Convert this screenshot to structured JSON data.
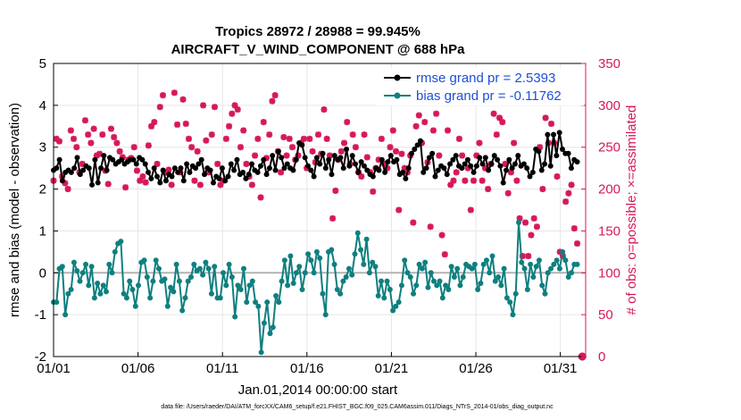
{
  "chart_data": {
    "type": "line",
    "title_line1": "Tropics 28972 / 28988 = 99.945%",
    "title_line2": "AIRCRAFT_V_WIND_COMPONENT @ 688 hPa",
    "xlabel": "Jan.01,2014 00:00:00 start",
    "ylabel_left": "rmse and bias (model - observation)",
    "ylabel_right": "# of obs: o=possible; ×=assimilated",
    "footnote": "data file: /Users/raeder/DAI/ATM_forcXX/CAM6_setup/f.e21.FHIST_BGC.f09_025.CAM6assim.011/Diags_NTrS_2014-01/obs_diag_output.nc",
    "xlim": [
      0,
      31.5
    ],
    "ylim_left": [
      -2,
      5
    ],
    "ylim_right": [
      0,
      350
    ],
    "x_ticks": [
      {
        "value": 0,
        "label": "01/01"
      },
      {
        "value": 5,
        "label": "01/06"
      },
      {
        "value": 10,
        "label": "01/11"
      },
      {
        "value": 15,
        "label": "01/16"
      },
      {
        "value": 20,
        "label": "01/21"
      },
      {
        "value": 25,
        "label": "01/26"
      },
      {
        "value": 30,
        "label": "01/31"
      }
    ],
    "y_ticks_left": [
      -2,
      -1,
      0,
      1,
      2,
      3,
      4,
      5
    ],
    "y_ticks_right": [
      0,
      50,
      100,
      150,
      200,
      250,
      300,
      350
    ],
    "grid": true,
    "legend_position": "top-right",
    "colors": {
      "rmse": "#000000",
      "bias": "#0f7f7f",
      "obs": "#d6195a",
      "zero_line": "#b3b3b3",
      "legend_text": "#1d4fd8"
    },
    "series": [
      {
        "name": "rmse grand pr = 2.5393",
        "axis": "left",
        "values": [
          2.45,
          2.5,
          2.7,
          2.2,
          2.4,
          2.45,
          2.4,
          2.5,
          2.75,
          2.35,
          2.45,
          2.55,
          2.5,
          2.1,
          2.7,
          2.15,
          2.5,
          2.8,
          2.45,
          2.75,
          2.7,
          2.6,
          2.65,
          2.7,
          2.6,
          2.65,
          2.7,
          2.7,
          2.6,
          2.75,
          2.7,
          2.6,
          2.4,
          2.25,
          2.5,
          2.3,
          2.15,
          2.45,
          2.2,
          2.35,
          2.3,
          2.5,
          2.4,
          2.5,
          2.2,
          2.6,
          2.4,
          2.55,
          2.5,
          2.6,
          2.7,
          2.35,
          2.5,
          2.45,
          2.15,
          2.3,
          2.25,
          2.5,
          2.2,
          2.3,
          2.6,
          2.45,
          2.7,
          2.35,
          2.4,
          2.25,
          2.35,
          2.6,
          2.45,
          2.4,
          2.55,
          2.7,
          2.35,
          2.5,
          2.8,
          2.45,
          2.9,
          2.75,
          2.5,
          2.6,
          2.5,
          2.45,
          2.7,
          3.1,
          3.05,
          2.75,
          2.55,
          2.45,
          2.3,
          2.75,
          2.6,
          2.85,
          2.5,
          2.7,
          2.35,
          2.8,
          2.7,
          2.75,
          2.5,
          2.95,
          2.55,
          2.8,
          2.6,
          2.4,
          2.65,
          2.55,
          2.45,
          2.35,
          2.3,
          2.5,
          2.45,
          2.7,
          2.4,
          2.65,
          2.8,
          2.65,
          2.7,
          2.35,
          2.4,
          2.25,
          2.5,
          2.85,
          2.95,
          3.05,
          3.15,
          2.4,
          2.5,
          2.75,
          2.85,
          2.3,
          2.45,
          2.55,
          2.5,
          2.35,
          2.6,
          2.7,
          2.8,
          2.55,
          2.5,
          2.6,
          2.7,
          2.55,
          2.4,
          2.55,
          2.75,
          2.6,
          2.75,
          2.45,
          2.6,
          2.8,
          2.7,
          2.55,
          2.15,
          2.45,
          2.7,
          2.5,
          2.6,
          2.8,
          2.55,
          2.6,
          2.5,
          2.3,
          2.4,
          2.95,
          2.9,
          2.45,
          2.6,
          3.3,
          2.55,
          3.3,
          2.8,
          3.35,
          2.95,
          2.85,
          2.85,
          2.5,
          2.7,
          2.65
        ]
      },
      {
        "name": "bias grand pr = -0.11762",
        "axis": "left",
        "values": [
          -0.7,
          -0.7,
          0.1,
          0.15,
          -1.0,
          -0.5,
          -0.4,
          0.25,
          0.05,
          -0.2,
          0.0,
          0.2,
          -0.3,
          0.15,
          -0.6,
          -0.25,
          -0.5,
          -0.3,
          -0.45,
          0.2,
          0.0,
          0.5,
          0.7,
          0.75,
          -0.5,
          -0.6,
          -0.2,
          -0.4,
          -0.8,
          -0.3,
          0.25,
          0.3,
          -0.1,
          -0.6,
          -0.2,
          0.3,
          0.1,
          -0.2,
          -0.15,
          -0.8,
          -0.35,
          -0.45,
          0.2,
          -0.2,
          -0.9,
          -0.6,
          -0.2,
          -0.1,
          0.2,
          0.05,
          0.1,
          -0.05,
          0.25,
          0.1,
          -0.5,
          0.15,
          -0.6,
          -0.6,
          0.0,
          -0.3,
          0.2,
          -0.1,
          -1.05,
          -0.3,
          -0.4,
          0.1,
          -0.7,
          -0.3,
          -0.2,
          -0.7,
          -0.8,
          -1.9,
          -1.2,
          -0.7,
          -1.45,
          -1.3,
          -0.55,
          -0.7,
          -0.2,
          0.3,
          -0.3,
          0.4,
          -0.25,
          0.0,
          0.15,
          -0.4,
          0.0,
          0.45,
          0.3,
          0.0,
          0.5,
          0.35,
          -0.5,
          -1.0,
          0.5,
          0.55,
          0.2,
          -0.4,
          -0.5,
          -0.2,
          -0.1,
          0.1,
          -0.05,
          0.45,
          0.95,
          0.55,
          0.2,
          0.8,
          0.0,
          0.25,
          0.15,
          -0.55,
          -0.2,
          -0.6,
          -0.2,
          -0.4,
          -0.9,
          -0.8,
          -0.7,
          -0.3,
          0.3,
          0.0,
          -0.1,
          -0.5,
          -0.3,
          0.2,
          0.1,
          0.25,
          -0.35,
          0.0,
          -0.2,
          -0.3,
          -0.2,
          -0.6,
          -0.3,
          -0.4,
          0.15,
          -0.1,
          0.1,
          -0.3,
          -0.1,
          0.2,
          0.15,
          0.1,
          0.2,
          -0.4,
          -0.25,
          0.2,
          0.3,
          0.0,
          0.4,
          -0.2,
          -0.1,
          -0.3,
          0.1,
          -0.6,
          -0.7,
          -1.0,
          -0.5,
          1.2,
          0.25,
          0.1,
          -0.4,
          0.2,
          -0.1,
          0.15,
          0.3,
          -0.3,
          -0.5,
          0.0,
          0.1,
          0.2,
          0.3,
          0.1,
          0.5,
          0.3,
          -0.1,
          0.0,
          0.2,
          0.2
        ]
      },
      {
        "name": "obs assimilated",
        "axis": "right",
        "values": [
          210,
          260,
          257,
          215,
          207,
          200,
          270,
          260,
          250,
          220,
          230,
          282,
          265,
          255,
          272,
          240,
          242,
          265,
          222,
          206,
          272,
          262,
          255,
          245,
          238,
          202,
          235,
          237,
          250,
          222,
          210,
          215,
          208,
          252,
          275,
          280,
          230,
          298,
          312,
          220,
          223,
          205,
          315,
          277,
          220,
          307,
          278,
          260,
          250,
          210,
          245,
          205,
          300,
          258,
          220,
          265,
          298,
          230,
          205,
          210,
          260,
          275,
          290,
          300,
          295,
          250,
          270,
          230,
          215,
          205,
          240,
          260,
          190,
          280,
          237,
          265,
          305,
          312,
          245,
          220,
          262,
          240,
          260,
          250,
          235,
          240,
          255,
          260,
          225,
          260,
          245,
          232,
          265,
          242,
          295,
          260,
          240,
          165,
          198,
          235,
          245,
          255,
          280,
          230,
          265,
          250,
          220,
          215,
          265,
          238,
          220,
          197,
          225,
          235,
          260,
          230,
          225,
          250,
          270,
          245,
          175,
          242,
          225,
          220,
          240,
          160,
          275,
          288,
          255,
          280,
          232,
          155,
          270,
          290,
          240,
          145,
          122,
          270,
          205,
          210,
          220,
          260,
          240,
          210,
          225,
          175,
          210,
          240,
          255,
          210,
          225,
          200,
          230,
          290,
          265,
          285,
          280,
          230,
          195,
          220,
          255,
          210,
          165,
          120,
          160,
          120,
          145,
          165,
          155,
          250,
          200,
          285,
          255,
          278,
          255,
          215,
          125,
          120,
          185,
          195,
          205,
          153,
          135
        ]
      },
      {
        "name": "obs possible (zero count markers)",
        "axis": "right",
        "x": [
          31.3,
          31.3
        ],
        "values": [
          0,
          0
        ]
      }
    ]
  }
}
